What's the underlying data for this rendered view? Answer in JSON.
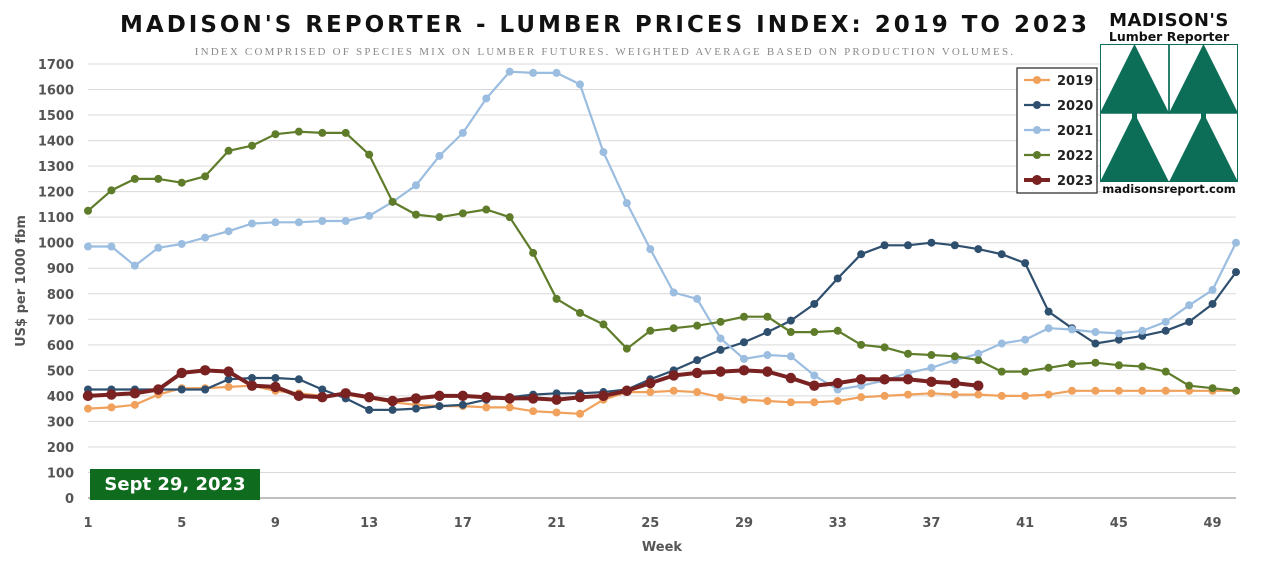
{
  "chart_data": {
    "type": "line",
    "title": "MADISON'S REPORTER - LUMBER PRICES INDEX: 2019 TO 2023",
    "subtitle": "INDEX COMPRISED OF SPECIES MIX ON LUMBER FUTURES. WEIGHTED AVERAGE BASED ON PRODUCTION VOLUMES.",
    "xlabel": "Week",
    "ylabel": "US$ per 1000 fbm",
    "xlim": [
      1,
      50
    ],
    "ylim": [
      0,
      1700
    ],
    "x_ticks": [
      1,
      5,
      9,
      13,
      17,
      21,
      25,
      29,
      33,
      37,
      41,
      45,
      49
    ],
    "y_ticks": [
      0,
      100,
      200,
      300,
      400,
      500,
      600,
      700,
      800,
      900,
      1000,
      1100,
      1200,
      1300,
      1400,
      1500,
      1600,
      1700
    ],
    "grid": "horizontal",
    "legend_position": "top-right",
    "annotation": "Sept 29, 2023",
    "series": [
      {
        "name": "2019",
        "color": "#f0a15c",
        "x": [
          1,
          2,
          3,
          4,
          5,
          6,
          7,
          8,
          9,
          10,
          11,
          12,
          13,
          14,
          15,
          16,
          17,
          18,
          19,
          20,
          21,
          22,
          23,
          24,
          25,
          26,
          27,
          28,
          29,
          30,
          31,
          32,
          33,
          34,
          35,
          36,
          37,
          38,
          39,
          40,
          41,
          42,
          43,
          44,
          45,
          46,
          47,
          48,
          49,
          50
        ],
        "values": [
          350,
          355,
          365,
          405,
          430,
          430,
          435,
          440,
          420,
          410,
          400,
          405,
          390,
          375,
          365,
          360,
          360,
          355,
          355,
          340,
          335,
          330,
          385,
          415,
          415,
          420,
          415,
          395,
          385,
          380,
          375,
          375,
          380,
          395,
          400,
          405,
          410,
          405,
          405,
          400,
          400,
          405,
          420,
          420,
          420,
          420,
          420,
          420,
          420,
          420
        ]
      },
      {
        "name": "2020",
        "color": "#2f4f6f",
        "x": [
          1,
          2,
          3,
          4,
          5,
          6,
          7,
          8,
          9,
          10,
          11,
          12,
          13,
          14,
          15,
          16,
          17,
          18,
          19,
          20,
          21,
          22,
          23,
          24,
          25,
          26,
          27,
          28,
          29,
          30,
          31,
          32,
          33,
          34,
          35,
          36,
          37,
          38,
          39,
          40,
          41,
          42,
          43,
          44,
          45,
          46,
          47,
          48,
          49,
          50
        ],
        "values": [
          425,
          425,
          425,
          425,
          425,
          425,
          465,
          470,
          470,
          465,
          425,
          390,
          345,
          345,
          350,
          360,
          365,
          385,
          395,
          405,
          410,
          410,
          415,
          425,
          465,
          500,
          540,
          580,
          610,
          650,
          695,
          760,
          860,
          955,
          990,
          990,
          1000,
          990,
          975,
          955,
          920,
          730,
          665,
          605,
          620,
          635,
          655,
          690,
          760,
          885
        ]
      },
      {
        "name": "2021",
        "color": "#9bbde0",
        "x": [
          1,
          2,
          3,
          4,
          5,
          6,
          7,
          8,
          9,
          10,
          11,
          12,
          13,
          14,
          15,
          16,
          17,
          18,
          19,
          20,
          21,
          22,
          23,
          24,
          25,
          26,
          27,
          28,
          29,
          30,
          31,
          32,
          33,
          34,
          35,
          36,
          37,
          38,
          39,
          40,
          41,
          42,
          43,
          44,
          45,
          46,
          47,
          48,
          49,
          50
        ],
        "values": [
          985,
          985,
          910,
          980,
          995,
          1020,
          1045,
          1075,
          1080,
          1080,
          1085,
          1085,
          1105,
          1160,
          1225,
          1340,
          1430,
          1565,
          1670,
          1665,
          1665,
          1620,
          1355,
          1155,
          975,
          805,
          780,
          625,
          545,
          560,
          555,
          480,
          425,
          440,
          460,
          490,
          510,
          540,
          565,
          605,
          620,
          665,
          660,
          650,
          645,
          655,
          690,
          755,
          815,
          1000
        ]
      },
      {
        "name": "2022",
        "color": "#5e7c2a",
        "x": [
          1,
          2,
          3,
          4,
          5,
          6,
          7,
          8,
          9,
          10,
          11,
          12,
          13,
          14,
          15,
          16,
          17,
          18,
          19,
          20,
          21,
          22,
          23,
          24,
          25,
          26,
          27,
          28,
          29,
          30,
          31,
          32,
          33,
          34,
          35,
          36,
          37,
          38,
          39,
          40,
          41,
          42,
          43,
          44,
          45,
          46,
          47,
          48,
          49,
          50
        ],
        "values": [
          1125,
          1205,
          1250,
          1250,
          1235,
          1260,
          1360,
          1380,
          1425,
          1435,
          1430,
          1430,
          1345,
          1160,
          1110,
          1100,
          1115,
          1130,
          1100,
          960,
          780,
          725,
          680,
          585,
          655,
          665,
          675,
          690,
          710,
          710,
          650,
          650,
          655,
          600,
          590,
          565,
          560,
          555,
          540,
          495,
          495,
          510,
          525,
          530,
          520,
          515,
          495,
          440,
          430,
          420
        ]
      },
      {
        "name": "2023",
        "color": "#7a2222",
        "x": [
          1,
          2,
          3,
          4,
          5,
          6,
          7,
          8,
          9,
          10,
          11,
          12,
          13,
          14,
          15,
          16,
          17,
          18,
          19,
          20,
          21,
          22,
          23,
          24,
          25,
          26,
          27,
          28,
          29,
          30,
          31,
          32,
          33,
          34,
          35,
          36,
          37,
          38,
          39
        ],
        "values": [
          400,
          405,
          410,
          425,
          490,
          500,
          495,
          440,
          435,
          400,
          395,
          410,
          395,
          380,
          390,
          400,
          400,
          395,
          390,
          390,
          385,
          395,
          400,
          420,
          450,
          480,
          490,
          495,
          500,
          495,
          470,
          440,
          450,
          465,
          465,
          465,
          455,
          450,
          440
        ]
      }
    ]
  },
  "logo": {
    "name": "MADISON'S",
    "sub": "Lumber Reporter",
    "url": "madisonsreport.com",
    "color": "#0d6e58"
  }
}
